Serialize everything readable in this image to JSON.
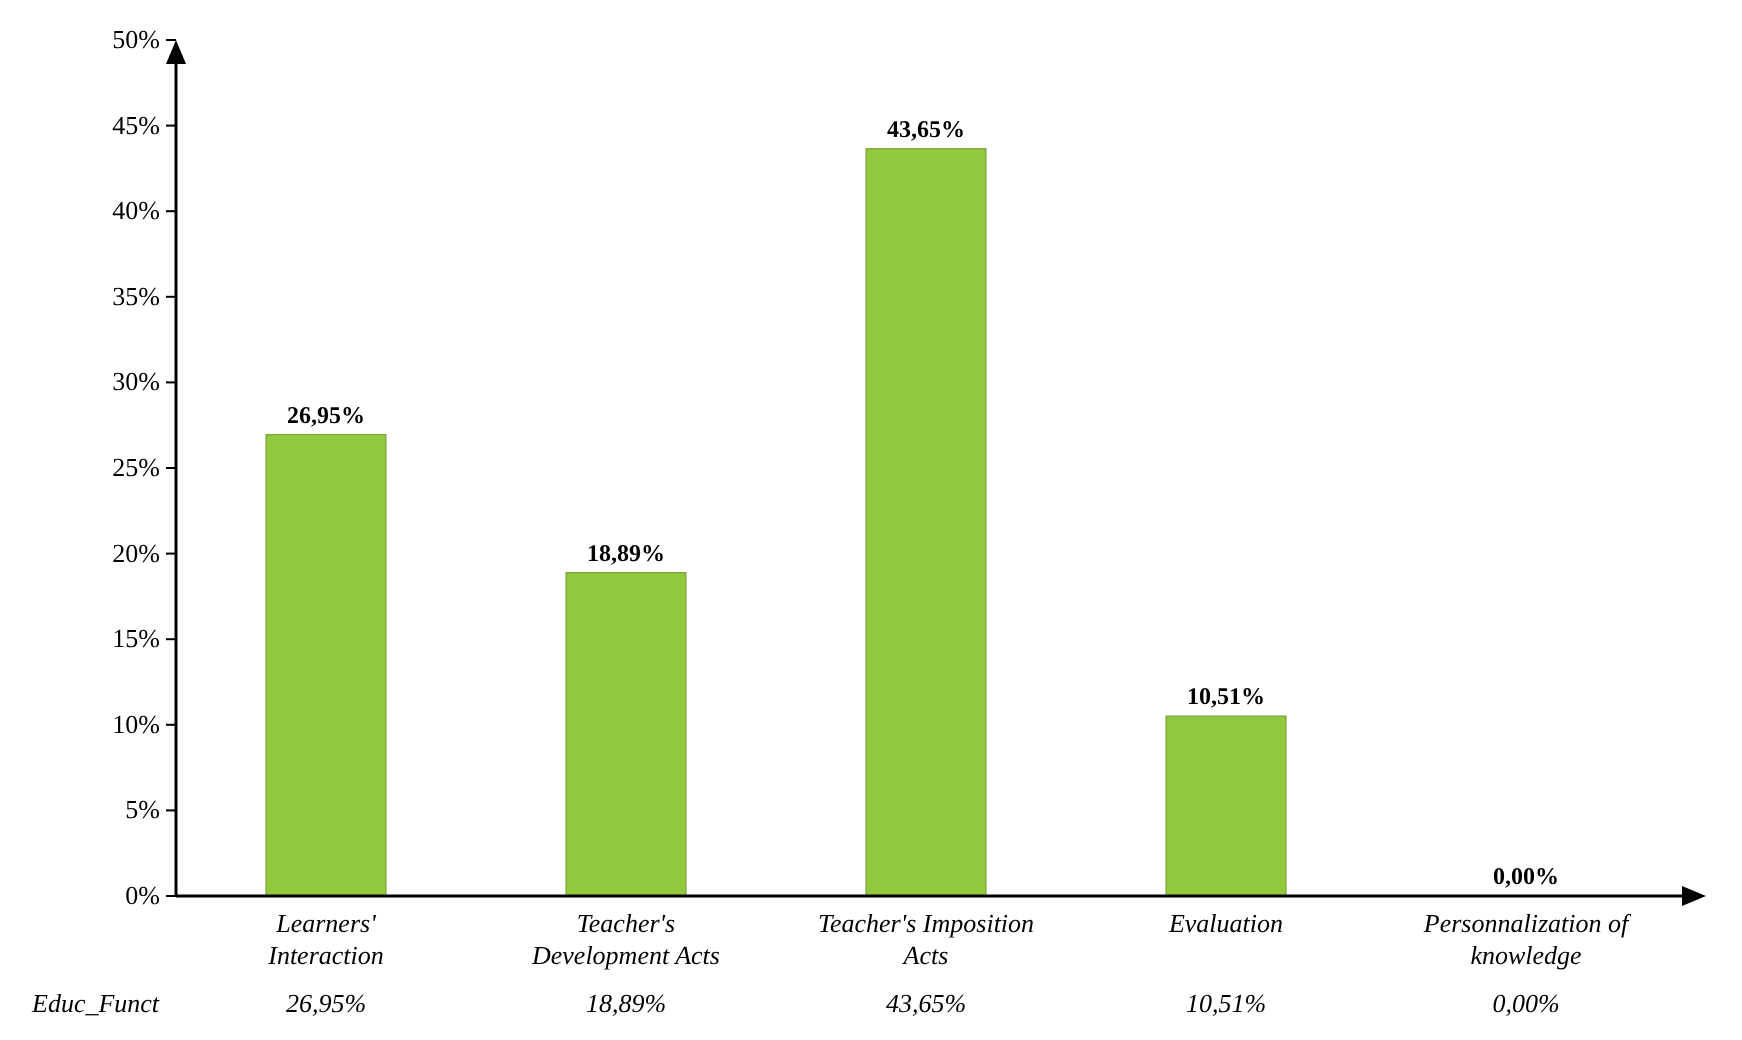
{
  "chart_data": {
    "type": "bar",
    "categories": [
      "Learners' Interaction",
      "Teacher's Development Acts",
      "Teacher's Imposition Acts",
      "Evaluation",
      "Personnalization of knowledge"
    ],
    "series": [
      {
        "name": "Educ_Funct",
        "color": "#92c83e",
        "values": [
          26.95,
          18.89,
          43.65,
          10.51,
          0.0
        ],
        "value_labels": [
          "26,95%",
          "18,89%",
          "43,65%",
          "10,51%",
          "0,00%"
        ]
      }
    ],
    "ylim": [
      0,
      50
    ],
    "yticks": [
      {
        "value": 0,
        "label": "0%"
      },
      {
        "value": 5,
        "label": "5%"
      },
      {
        "value": 10,
        "label": "10%"
      },
      {
        "value": 15,
        "label": "15%"
      },
      {
        "value": 20,
        "label": "20%"
      },
      {
        "value": 25,
        "label": "25%"
      },
      {
        "value": 30,
        "label": "30%"
      },
      {
        "value": 35,
        "label": "35%"
      },
      {
        "value": 40,
        "label": "40%"
      },
      {
        "value": 45,
        "label": "45%"
      },
      {
        "value": 50,
        "label": "50%"
      }
    ],
    "tick_labels": true
  }
}
